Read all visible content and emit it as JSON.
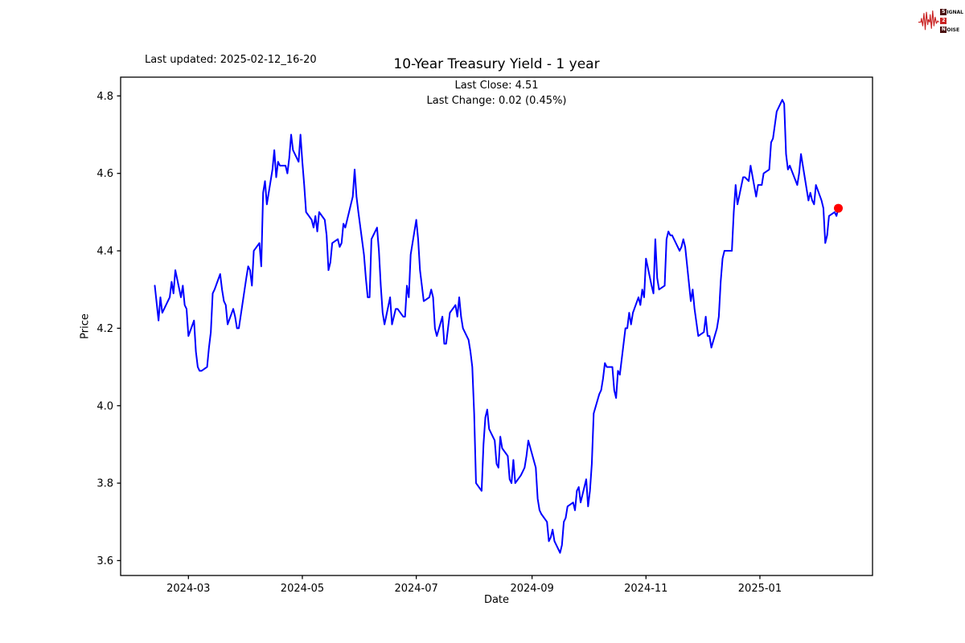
{
  "header": {
    "last_updated": "Last updated: 2025-02-12_16-20",
    "title": "10-Year Treasury Yield - 1 year",
    "subtitle_line1": "Last Close: 4.51",
    "subtitle_line2": "Last Change: 0.02 (0.45%)"
  },
  "logo": {
    "signal_first": "S",
    "signal_rest": "IGNAL",
    "two": "2",
    "noise_first": "N",
    "noise_rest": "OISE",
    "waveform_color": "#c92121"
  },
  "chart_data": {
    "type": "line",
    "title": "10-Year Treasury Yield - 1 year",
    "xlabel": "Date",
    "ylabel": "Price",
    "last_close": 4.51,
    "last_change": "0.02 (0.45%)",
    "line_color": "#0000ff",
    "marker_color": "#ff0000",
    "grid": false,
    "legend": "none",
    "x_data_range": [
      "2024-02-12",
      "2025-02-12"
    ],
    "x_margin_frac": 0.05,
    "ylim": [
      3.5615,
      4.8485
    ],
    "y_ticks": [
      3.6,
      3.8,
      4.0,
      4.2,
      4.4,
      4.6,
      4.8
    ],
    "y_tick_labels": [
      "3.6",
      "3.8",
      "4.0",
      "4.2",
      "4.4",
      "4.6",
      "4.8"
    ],
    "x_tick_dates": [
      "2024-03-01",
      "2024-05-01",
      "2024-07-01",
      "2024-09-01",
      "2024-11-01",
      "2025-01-01"
    ],
    "x_tick_labels": [
      "2024-03",
      "2024-05",
      "2024-07",
      "2024-09",
      "2024-11",
      "2025-01"
    ],
    "series": [
      {
        "name": "10-Year Treasury Yield",
        "points": [
          [
            "2024-02-12",
            4.31
          ],
          [
            "2024-02-14",
            4.22
          ],
          [
            "2024-02-15",
            4.28
          ],
          [
            "2024-02-16",
            4.24
          ],
          [
            "2024-02-20",
            4.28
          ],
          [
            "2024-02-21",
            4.32
          ],
          [
            "2024-02-22",
            4.29
          ],
          [
            "2024-02-23",
            4.35
          ],
          [
            "2024-02-26",
            4.28
          ],
          [
            "2024-02-27",
            4.31
          ],
          [
            "2024-02-28",
            4.26
          ],
          [
            "2024-02-29",
            4.25
          ],
          [
            "2024-03-01",
            4.18
          ],
          [
            "2024-03-04",
            4.22
          ],
          [
            "2024-03-05",
            4.14
          ],
          [
            "2024-03-06",
            4.1
          ],
          [
            "2024-03-07",
            4.09
          ],
          [
            "2024-03-08",
            4.09
          ],
          [
            "2024-03-11",
            4.1
          ],
          [
            "2024-03-12",
            4.15
          ],
          [
            "2024-03-13",
            4.19
          ],
          [
            "2024-03-14",
            4.29
          ],
          [
            "2024-03-15",
            4.3
          ],
          [
            "2024-03-18",
            4.34
          ],
          [
            "2024-03-19",
            4.3
          ],
          [
            "2024-03-20",
            4.27
          ],
          [
            "2024-03-21",
            4.26
          ],
          [
            "2024-03-22",
            4.21
          ],
          [
            "2024-03-25",
            4.25
          ],
          [
            "2024-03-26",
            4.23
          ],
          [
            "2024-03-27",
            4.2
          ],
          [
            "2024-03-28",
            4.2
          ],
          [
            "2024-04-01",
            4.33
          ],
          [
            "2024-04-02",
            4.36
          ],
          [
            "2024-04-03",
            4.35
          ],
          [
            "2024-04-04",
            4.31
          ],
          [
            "2024-04-05",
            4.4
          ],
          [
            "2024-04-08",
            4.42
          ],
          [
            "2024-04-09",
            4.36
          ],
          [
            "2024-04-10",
            4.55
          ],
          [
            "2024-04-11",
            4.58
          ],
          [
            "2024-04-12",
            4.52
          ],
          [
            "2024-04-15",
            4.61
          ],
          [
            "2024-04-16",
            4.66
          ],
          [
            "2024-04-17",
            4.59
          ],
          [
            "2024-04-18",
            4.63
          ],
          [
            "2024-04-19",
            4.62
          ],
          [
            "2024-04-22",
            4.62
          ],
          [
            "2024-04-23",
            4.6
          ],
          [
            "2024-04-24",
            4.64
          ],
          [
            "2024-04-25",
            4.7
          ],
          [
            "2024-04-26",
            4.66
          ],
          [
            "2024-04-29",
            4.63
          ],
          [
            "2024-04-30",
            4.7
          ],
          [
            "2024-05-01",
            4.63
          ],
          [
            "2024-05-02",
            4.57
          ],
          [
            "2024-05-03",
            4.5
          ],
          [
            "2024-05-06",
            4.48
          ],
          [
            "2024-05-07",
            4.46
          ],
          [
            "2024-05-08",
            4.49
          ],
          [
            "2024-05-09",
            4.45
          ],
          [
            "2024-05-10",
            4.5
          ],
          [
            "2024-05-13",
            4.48
          ],
          [
            "2024-05-14",
            4.44
          ],
          [
            "2024-05-15",
            4.35
          ],
          [
            "2024-05-16",
            4.37
          ],
          [
            "2024-05-17",
            4.42
          ],
          [
            "2024-05-20",
            4.43
          ],
          [
            "2024-05-21",
            4.41
          ],
          [
            "2024-05-22",
            4.42
          ],
          [
            "2024-05-23",
            4.47
          ],
          [
            "2024-05-24",
            4.46
          ],
          [
            "2024-05-28",
            4.54
          ],
          [
            "2024-05-29",
            4.61
          ],
          [
            "2024-05-30",
            4.54
          ],
          [
            "2024-05-31",
            4.5
          ],
          [
            "2024-06-03",
            4.39
          ],
          [
            "2024-06-04",
            4.33
          ],
          [
            "2024-06-05",
            4.28
          ],
          [
            "2024-06-06",
            4.28
          ],
          [
            "2024-06-07",
            4.43
          ],
          [
            "2024-06-10",
            4.46
          ],
          [
            "2024-06-11",
            4.4
          ],
          [
            "2024-06-12",
            4.31
          ],
          [
            "2024-06-13",
            4.24
          ],
          [
            "2024-06-14",
            4.21
          ],
          [
            "2024-06-17",
            4.28
          ],
          [
            "2024-06-18",
            4.21
          ],
          [
            "2024-06-20",
            4.25
          ],
          [
            "2024-06-21",
            4.25
          ],
          [
            "2024-06-24",
            4.23
          ],
          [
            "2024-06-25",
            4.23
          ],
          [
            "2024-06-26",
            4.31
          ],
          [
            "2024-06-27",
            4.28
          ],
          [
            "2024-06-28",
            4.39
          ],
          [
            "2024-07-01",
            4.48
          ],
          [
            "2024-07-02",
            4.43
          ],
          [
            "2024-07-03",
            4.35
          ],
          [
            "2024-07-05",
            4.27
          ],
          [
            "2024-07-08",
            4.28
          ],
          [
            "2024-07-09",
            4.3
          ],
          [
            "2024-07-10",
            4.28
          ],
          [
            "2024-07-11",
            4.2
          ],
          [
            "2024-07-12",
            4.18
          ],
          [
            "2024-07-15",
            4.23
          ],
          [
            "2024-07-16",
            4.16
          ],
          [
            "2024-07-17",
            4.16
          ],
          [
            "2024-07-18",
            4.2
          ],
          [
            "2024-07-19",
            4.24
          ],
          [
            "2024-07-22",
            4.26
          ],
          [
            "2024-07-23",
            4.23
          ],
          [
            "2024-07-24",
            4.28
          ],
          [
            "2024-07-25",
            4.23
          ],
          [
            "2024-07-26",
            4.2
          ],
          [
            "2024-07-29",
            4.17
          ],
          [
            "2024-07-30",
            4.14
          ],
          [
            "2024-07-31",
            4.1
          ],
          [
            "2024-08-01",
            3.98
          ],
          [
            "2024-08-02",
            3.8
          ],
          [
            "2024-08-05",
            3.78
          ],
          [
            "2024-08-06",
            3.9
          ],
          [
            "2024-08-07",
            3.97
          ],
          [
            "2024-08-08",
            3.99
          ],
          [
            "2024-08-09",
            3.94
          ],
          [
            "2024-08-12",
            3.91
          ],
          [
            "2024-08-13",
            3.85
          ],
          [
            "2024-08-14",
            3.84
          ],
          [
            "2024-08-15",
            3.92
          ],
          [
            "2024-08-16",
            3.89
          ],
          [
            "2024-08-19",
            3.87
          ],
          [
            "2024-08-20",
            3.81
          ],
          [
            "2024-08-21",
            3.8
          ],
          [
            "2024-08-22",
            3.86
          ],
          [
            "2024-08-23",
            3.8
          ],
          [
            "2024-08-26",
            3.82
          ],
          [
            "2024-08-27",
            3.83
          ],
          [
            "2024-08-28",
            3.84
          ],
          [
            "2024-08-29",
            3.87
          ],
          [
            "2024-08-30",
            3.91
          ],
          [
            "2024-09-03",
            3.84
          ],
          [
            "2024-09-04",
            3.76
          ],
          [
            "2024-09-05",
            3.73
          ],
          [
            "2024-09-06",
            3.72
          ],
          [
            "2024-09-09",
            3.7
          ],
          [
            "2024-09-10",
            3.65
          ],
          [
            "2024-09-11",
            3.66
          ],
          [
            "2024-09-12",
            3.68
          ],
          [
            "2024-09-13",
            3.65
          ],
          [
            "2024-09-16",
            3.62
          ],
          [
            "2024-09-17",
            3.64
          ],
          [
            "2024-09-18",
            3.7
          ],
          [
            "2024-09-19",
            3.71
          ],
          [
            "2024-09-20",
            3.74
          ],
          [
            "2024-09-23",
            3.75
          ],
          [
            "2024-09-24",
            3.73
          ],
          [
            "2024-09-25",
            3.78
          ],
          [
            "2024-09-26",
            3.79
          ],
          [
            "2024-09-27",
            3.75
          ],
          [
            "2024-09-30",
            3.81
          ],
          [
            "2024-10-01",
            3.74
          ],
          [
            "2024-10-02",
            3.78
          ],
          [
            "2024-10-03",
            3.85
          ],
          [
            "2024-10-04",
            3.98
          ],
          [
            "2024-10-07",
            4.03
          ],
          [
            "2024-10-08",
            4.04
          ],
          [
            "2024-10-09",
            4.07
          ],
          [
            "2024-10-10",
            4.11
          ],
          [
            "2024-10-11",
            4.1
          ],
          [
            "2024-10-14",
            4.1
          ],
          [
            "2024-10-15",
            4.04
          ],
          [
            "2024-10-16",
            4.02
          ],
          [
            "2024-10-17",
            4.09
          ],
          [
            "2024-10-18",
            4.08
          ],
          [
            "2024-10-21",
            4.2
          ],
          [
            "2024-10-22",
            4.2
          ],
          [
            "2024-10-23",
            4.24
          ],
          [
            "2024-10-24",
            4.21
          ],
          [
            "2024-10-25",
            4.24
          ],
          [
            "2024-10-28",
            4.28
          ],
          [
            "2024-10-29",
            4.26
          ],
          [
            "2024-10-30",
            4.3
          ],
          [
            "2024-10-31",
            4.28
          ],
          [
            "2024-11-01",
            4.38
          ],
          [
            "2024-11-04",
            4.31
          ],
          [
            "2024-11-05",
            4.29
          ],
          [
            "2024-11-06",
            4.43
          ],
          [
            "2024-11-07",
            4.33
          ],
          [
            "2024-11-08",
            4.3
          ],
          [
            "2024-11-11",
            4.31
          ],
          [
            "2024-11-12",
            4.43
          ],
          [
            "2024-11-13",
            4.45
          ],
          [
            "2024-11-14",
            4.44
          ],
          [
            "2024-11-15",
            4.44
          ],
          [
            "2024-11-18",
            4.41
          ],
          [
            "2024-11-19",
            4.4
          ],
          [
            "2024-11-20",
            4.41
          ],
          [
            "2024-11-21",
            4.43
          ],
          [
            "2024-11-22",
            4.41
          ],
          [
            "2024-11-25",
            4.27
          ],
          [
            "2024-11-26",
            4.3
          ],
          [
            "2024-11-27",
            4.25
          ],
          [
            "2024-11-29",
            4.18
          ],
          [
            "2024-12-02",
            4.19
          ],
          [
            "2024-12-03",
            4.23
          ],
          [
            "2024-12-04",
            4.18
          ],
          [
            "2024-12-05",
            4.18
          ],
          [
            "2024-12-06",
            4.15
          ],
          [
            "2024-12-09",
            4.2
          ],
          [
            "2024-12-10",
            4.23
          ],
          [
            "2024-12-11",
            4.32
          ],
          [
            "2024-12-12",
            4.38
          ],
          [
            "2024-12-13",
            4.4
          ],
          [
            "2024-12-16",
            4.4
          ],
          [
            "2024-12-17",
            4.4
          ],
          [
            "2024-12-18",
            4.5
          ],
          [
            "2024-12-19",
            4.57
          ],
          [
            "2024-12-20",
            4.52
          ],
          [
            "2024-12-23",
            4.59
          ],
          [
            "2024-12-24",
            4.59
          ],
          [
            "2024-12-26",
            4.58
          ],
          [
            "2024-12-27",
            4.62
          ],
          [
            "2024-12-30",
            4.54
          ],
          [
            "2024-12-31",
            4.57
          ],
          [
            "2025-01-02",
            4.57
          ],
          [
            "2025-01-03",
            4.6
          ],
          [
            "2025-01-06",
            4.61
          ],
          [
            "2025-01-07",
            4.68
          ],
          [
            "2025-01-08",
            4.69
          ],
          [
            "2025-01-10",
            4.76
          ],
          [
            "2025-01-13",
            4.79
          ],
          [
            "2025-01-14",
            4.78
          ],
          [
            "2025-01-15",
            4.65
          ],
          [
            "2025-01-16",
            4.61
          ],
          [
            "2025-01-17",
            4.62
          ],
          [
            "2025-01-21",
            4.57
          ],
          [
            "2025-01-22",
            4.6
          ],
          [
            "2025-01-23",
            4.65
          ],
          [
            "2025-01-24",
            4.62
          ],
          [
            "2025-01-27",
            4.53
          ],
          [
            "2025-01-28",
            4.55
          ],
          [
            "2025-01-29",
            4.53
          ],
          [
            "2025-01-30",
            4.52
          ],
          [
            "2025-01-31",
            4.57
          ],
          [
            "2025-02-03",
            4.53
          ],
          [
            "2025-02-04",
            4.51
          ],
          [
            "2025-02-05",
            4.42
          ],
          [
            "2025-02-06",
            4.44
          ],
          [
            "2025-02-07",
            4.49
          ],
          [
            "2025-02-10",
            4.5
          ],
          [
            "2025-02-11",
            4.49
          ],
          [
            "2025-02-12",
            4.51
          ]
        ]
      }
    ]
  }
}
